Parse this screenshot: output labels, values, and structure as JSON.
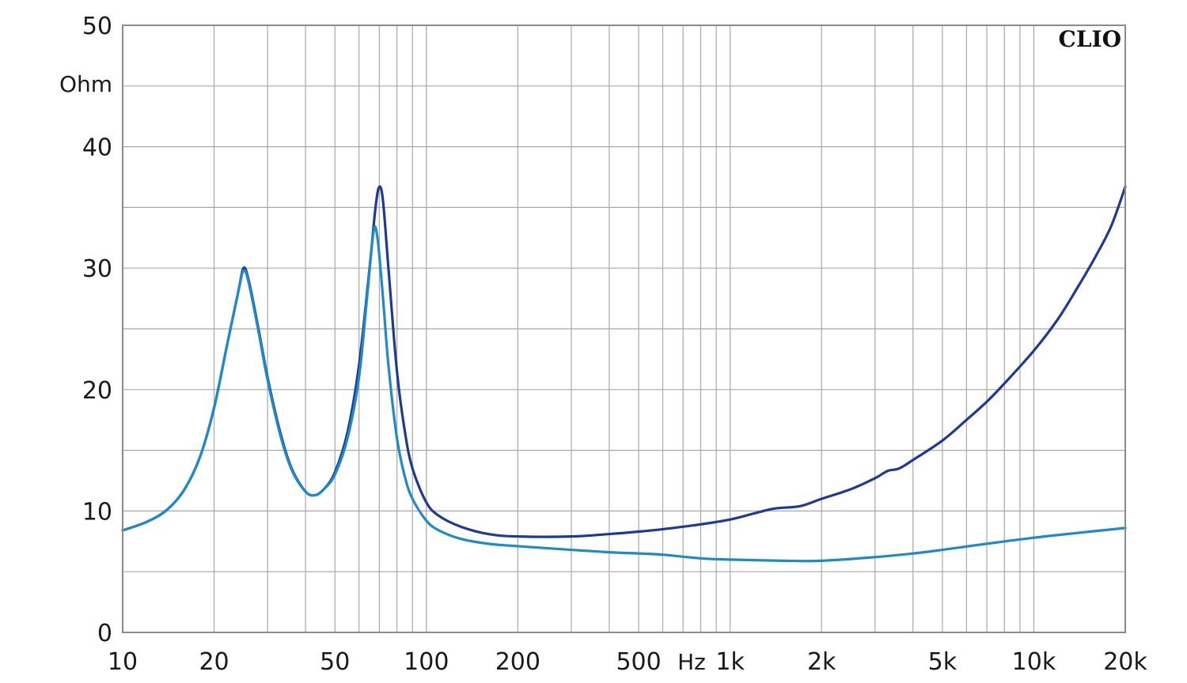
{
  "chart_data": {
    "type": "line",
    "title": "",
    "brand": "CLIO",
    "xlabel": "Hz",
    "ylabel": "Ohm",
    "x_scale": "log",
    "xlim": [
      10,
      20000
    ],
    "ylim": [
      0,
      50
    ],
    "grid": true,
    "legend": "none",
    "y_ticks": [
      {
        "value": 0,
        "label": "0"
      },
      {
        "value": 10,
        "label": "10"
      },
      {
        "value": 20,
        "label": "20"
      },
      {
        "value": 30,
        "label": "30"
      },
      {
        "value": 40,
        "label": "40"
      },
      {
        "value": 50,
        "label": "50"
      }
    ],
    "x_ticks": [
      {
        "value": 10,
        "label": "10"
      },
      {
        "value": 20,
        "label": "20"
      },
      {
        "value": 50,
        "label": "50"
      },
      {
        "value": 100,
        "label": "100"
      },
      {
        "value": 200,
        "label": "200"
      },
      {
        "value": 500,
        "label": "500"
      },
      {
        "value": 1000,
        "label": "1k"
      },
      {
        "value": 2000,
        "label": "2k"
      },
      {
        "value": 5000,
        "label": "5k"
      },
      {
        "value": 10000,
        "label": "10k"
      },
      {
        "value": 20000,
        "label": "20k"
      }
    ],
    "series": [
      {
        "color": "#1f3a93",
        "points": [
          [
            10,
            8.4
          ],
          [
            12,
            9.1
          ],
          [
            14,
            10.1
          ],
          [
            16,
            11.8
          ],
          [
            18,
            14.5
          ],
          [
            20,
            18.5
          ],
          [
            22,
            23.5
          ],
          [
            24,
            28.0
          ],
          [
            25,
            30.0
          ],
          [
            26,
            29.0
          ],
          [
            28,
            25.0
          ],
          [
            30,
            21.0
          ],
          [
            33,
            16.5
          ],
          [
            36,
            13.5
          ],
          [
            40,
            11.6
          ],
          [
            43,
            11.3
          ],
          [
            46,
            11.8
          ],
          [
            50,
            13.2
          ],
          [
            55,
            16.5
          ],
          [
            60,
            22.0
          ],
          [
            65,
            30.0
          ],
          [
            68,
            35.0
          ],
          [
            70,
            36.7
          ],
          [
            72,
            35.5
          ],
          [
            75,
            30.0
          ],
          [
            80,
            21.5
          ],
          [
            85,
            16.5
          ],
          [
            90,
            13.5
          ],
          [
            100,
            10.7
          ],
          [
            110,
            9.6
          ],
          [
            130,
            8.7
          ],
          [
            160,
            8.1
          ],
          [
            200,
            7.9
          ],
          [
            300,
            7.9
          ],
          [
            400,
            8.1
          ],
          [
            500,
            8.3
          ],
          [
            600,
            8.5
          ],
          [
            800,
            8.9
          ],
          [
            1000,
            9.3
          ],
          [
            1200,
            9.8
          ],
          [
            1400,
            10.2
          ],
          [
            1700,
            10.4
          ],
          [
            2000,
            11.0
          ],
          [
            2500,
            11.8
          ],
          [
            3000,
            12.7
          ],
          [
            3300,
            13.3
          ],
          [
            3600,
            13.5
          ],
          [
            4000,
            14.2
          ],
          [
            5000,
            15.8
          ],
          [
            6000,
            17.5
          ],
          [
            7000,
            19.0
          ],
          [
            8000,
            20.5
          ],
          [
            10000,
            23.2
          ],
          [
            12000,
            25.8
          ],
          [
            14000,
            28.5
          ],
          [
            16000,
            31.0
          ],
          [
            18000,
            33.5
          ],
          [
            20000,
            36.7
          ]
        ]
      },
      {
        "color": "#1f8ac8",
        "points": [
          [
            10,
            8.4
          ],
          [
            12,
            9.1
          ],
          [
            14,
            10.1
          ],
          [
            16,
            11.8
          ],
          [
            18,
            14.5
          ],
          [
            20,
            18.5
          ],
          [
            22,
            23.5
          ],
          [
            24,
            28.0
          ],
          [
            25,
            29.8
          ],
          [
            26,
            28.8
          ],
          [
            28,
            24.8
          ],
          [
            30,
            20.8
          ],
          [
            33,
            16.3
          ],
          [
            36,
            13.4
          ],
          [
            40,
            11.6
          ],
          [
            43,
            11.3
          ],
          [
            46,
            11.8
          ],
          [
            50,
            13.0
          ],
          [
            55,
            16.0
          ],
          [
            60,
            21.0
          ],
          [
            64,
            28.0
          ],
          [
            67,
            33.0
          ],
          [
            69,
            32.5
          ],
          [
            72,
            27.5
          ],
          [
            75,
            22.0
          ],
          [
            80,
            16.0
          ],
          [
            85,
            12.8
          ],
          [
            90,
            11.0
          ],
          [
            100,
            9.2
          ],
          [
            110,
            8.4
          ],
          [
            130,
            7.7
          ],
          [
            160,
            7.3
          ],
          [
            200,
            7.1
          ],
          [
            300,
            6.8
          ],
          [
            400,
            6.6
          ],
          [
            500,
            6.5
          ],
          [
            600,
            6.4
          ],
          [
            800,
            6.1
          ],
          [
            1000,
            6.0
          ],
          [
            1500,
            5.9
          ],
          [
            2000,
            5.9
          ],
          [
            3000,
            6.2
          ],
          [
            4000,
            6.5
          ],
          [
            5000,
            6.8
          ],
          [
            7000,
            7.3
          ],
          [
            10000,
            7.8
          ],
          [
            14000,
            8.2
          ],
          [
            20000,
            8.6
          ]
        ]
      }
    ]
  }
}
